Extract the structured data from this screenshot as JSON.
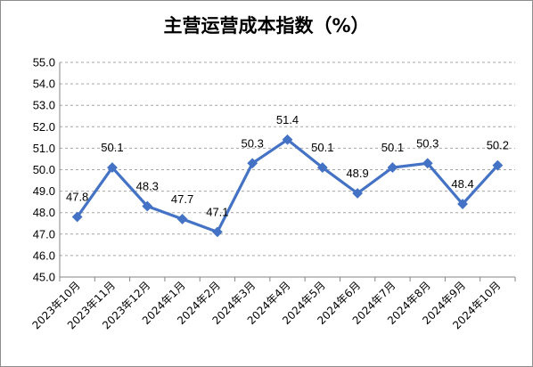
{
  "chart_data": {
    "type": "line",
    "title": "主营运营成本指数（%）",
    "xlabel": "",
    "ylabel": "",
    "categories": [
      "2023年10月",
      "2023年11月",
      "2023年12月",
      "2024年1月",
      "2024年2月",
      "2024年3月",
      "2024年4月",
      "2024年5月",
      "2024年6月",
      "2024年7月",
      "2024年8月",
      "2024年9月",
      "2024年10月"
    ],
    "series": [
      {
        "values": [
          47.8,
          50.1,
          48.3,
          47.7,
          47.1,
          50.3,
          51.4,
          50.1,
          48.9,
          50.1,
          50.3,
          48.4,
          50.2
        ]
      }
    ],
    "data_labels": [
      "47.8",
      "50.1",
      "48.3",
      "47.7",
      "47.1",
      "50.3",
      "51.4",
      "50.1",
      "48.9",
      "50.1",
      "50.3",
      "48.4",
      "50.2"
    ],
    "ylim": [
      45.0,
      55.0
    ],
    "y_ticks": [
      "45.0",
      "46.0",
      "47.0",
      "48.0",
      "49.0",
      "50.0",
      "51.0",
      "52.0",
      "53.0",
      "54.0",
      "55.0"
    ],
    "grid": "horizontal dashed",
    "legend": "none",
    "line_color": "#4472c4"
  }
}
